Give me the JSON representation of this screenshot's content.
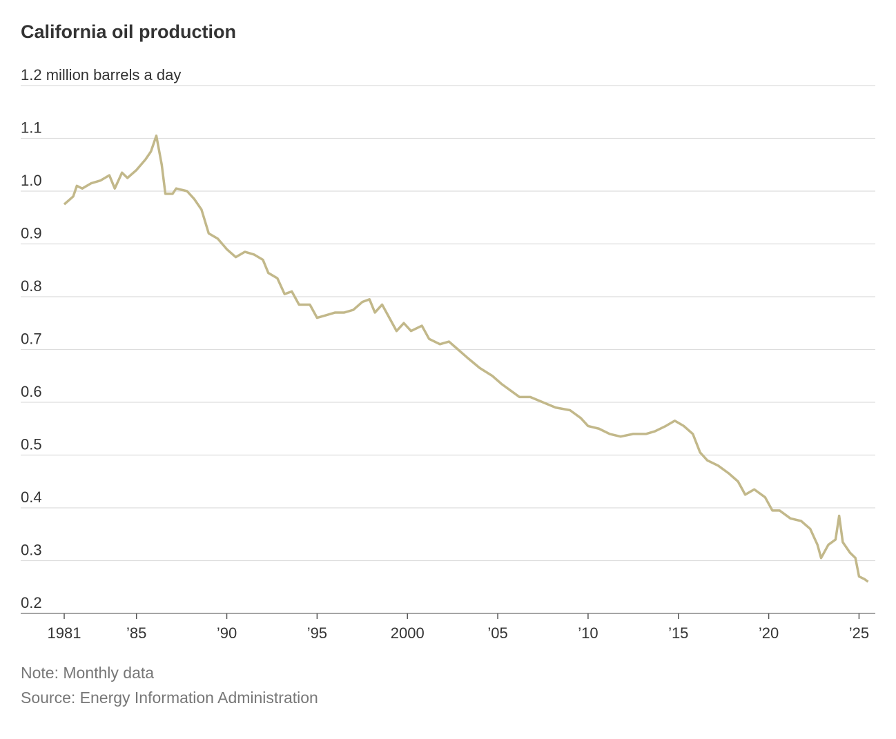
{
  "chart_data": {
    "type": "line",
    "title": "California oil production",
    "note": "Note: Monthly data",
    "source": "Source: Energy Information Administration",
    "xlim": [
      1981,
      2025.9
    ],
    "ylim": [
      0.2,
      1.2
    ],
    "xticks": [
      1981,
      {
        "value": 1985,
        "label": "’85"
      },
      {
        "value": 1990,
        "label": "’90"
      },
      {
        "value": 1995,
        "label": "’95"
      },
      2000,
      {
        "value": 2005,
        "label": "’05"
      },
      {
        "value": 2010,
        "label": "’10"
      },
      {
        "value": 2015,
        "label": "’15"
      },
      {
        "value": 2020,
        "label": "’20"
      },
      {
        "value": 2025,
        "label": "’25"
      }
    ],
    "yticks": [
      0.2,
      0.3,
      0.4,
      0.5,
      0.6,
      0.7,
      0.8,
      0.9,
      {
        "value": 1.0,
        "label": "1.0"
      },
      1.1,
      {
        "value": 1.2,
        "label": "1.2 million barrels a day"
      }
    ],
    "grid": true,
    "series": [
      {
        "color": "#c2b88a",
        "x": [
          1981.0,
          1981.5,
          1981.7,
          1982.0,
          1982.5,
          1983.0,
          1983.5,
          1983.8,
          1984.2,
          1984.5,
          1985.0,
          1985.5,
          1985.8,
          1986.1,
          1986.4,
          1986.6,
          1987.0,
          1987.2,
          1987.8,
          1988.2,
          1988.6,
          1989.0,
          1989.5,
          1990.0,
          1990.5,
          1991.0,
          1991.5,
          1992.0,
          1992.3,
          1992.8,
          1993.2,
          1993.6,
          1994.0,
          1994.6,
          1995.0,
          1995.5,
          1996.0,
          1996.5,
          1997.0,
          1997.5,
          1997.9,
          1998.2,
          1998.6,
          1999.0,
          1999.4,
          1999.8,
          2000.2,
          2000.8,
          2001.2,
          2001.8,
          2002.3,
          2002.8,
          2003.3,
          2004.0,
          2004.7,
          2005.2,
          2005.8,
          2006.2,
          2006.8,
          2007.5,
          2008.2,
          2009.0,
          2009.6,
          2010.0,
          2010.6,
          2011.2,
          2011.8,
          2012.5,
          2013.2,
          2013.7,
          2014.3,
          2014.8,
          2015.3,
          2015.8,
          2016.2,
          2016.6,
          2017.2,
          2017.8,
          2018.3,
          2018.7,
          2019.2,
          2019.8,
          2020.2,
          2020.6,
          2021.2,
          2021.8,
          2022.3,
          2022.7,
          2022.9,
          2023.3,
          2023.7,
          2023.9,
          2024.1,
          2024.5,
          2024.8,
          2025.0,
          2025.3,
          2025.5
        ],
        "values": [
          0.975,
          0.99,
          1.01,
          1.005,
          1.015,
          1.02,
          1.03,
          1.005,
          1.035,
          1.025,
          1.04,
          1.06,
          1.075,
          1.105,
          1.05,
          0.995,
          0.995,
          1.005,
          1.0,
          0.985,
          0.965,
          0.92,
          0.91,
          0.89,
          0.875,
          0.885,
          0.88,
          0.87,
          0.845,
          0.835,
          0.805,
          0.81,
          0.785,
          0.785,
          0.76,
          0.765,
          0.77,
          0.77,
          0.775,
          0.79,
          0.795,
          0.77,
          0.785,
          0.76,
          0.735,
          0.75,
          0.735,
          0.745,
          0.72,
          0.71,
          0.715,
          0.7,
          0.685,
          0.665,
          0.65,
          0.635,
          0.62,
          0.61,
          0.61,
          0.6,
          0.59,
          0.585,
          0.57,
          0.555,
          0.55,
          0.54,
          0.535,
          0.54,
          0.54,
          0.545,
          0.555,
          0.565,
          0.555,
          0.54,
          0.505,
          0.49,
          0.48,
          0.465,
          0.45,
          0.425,
          0.435,
          0.42,
          0.395,
          0.395,
          0.38,
          0.375,
          0.36,
          0.33,
          0.305,
          0.33,
          0.34,
          0.385,
          0.335,
          0.315,
          0.305,
          0.27,
          0.265,
          0.26
        ]
      }
    ]
  }
}
